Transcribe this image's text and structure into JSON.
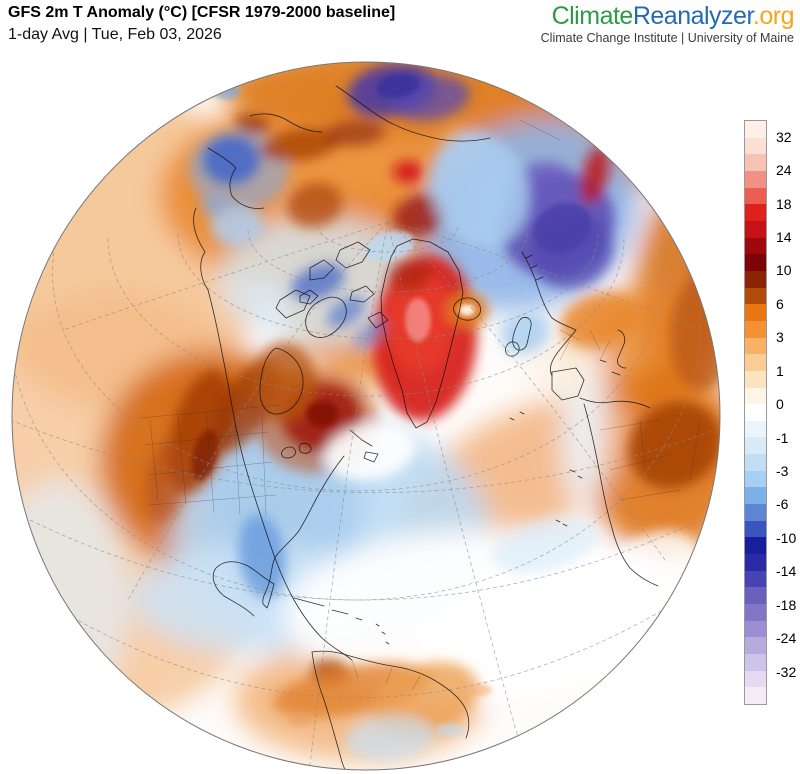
{
  "header": {
    "title": "GFS 2m T Anomaly (°C) [CFSR 1979-2000 baseline]",
    "subtitle": "1-day Avg | Tue, Feb 03, 2026"
  },
  "logo": {
    "part1": "Climate",
    "part2": "Reanalyzer",
    "part3": ".org",
    "tagline": "Climate Change Institute | University of Maine",
    "colors": {
      "part1": "#2C9A47",
      "part2": "#2569B0",
      "part3": "#F7A51B"
    }
  },
  "colorbar": {
    "units": "°C",
    "tick_labels": [
      "32",
      "24",
      "18",
      "14",
      "10",
      "6",
      "3",
      "1",
      "0",
      "-1",
      "-3",
      "-6",
      "-10",
      "-14",
      "-18",
      "-24",
      "-32"
    ],
    "segments": [
      "#FDF0E9",
      "#FAE0D5",
      "#F6C3B4",
      "#F19085",
      "#EB5F52",
      "#DE221B",
      "#C51217",
      "#9E090D",
      "#7C0408",
      "#8B2405",
      "#B14B0A",
      "#E97613",
      "#F59133",
      "#F8B265",
      "#FACD96",
      "#FCE3C1",
      "#FEF5E7",
      "#FFFFFF",
      "#EDF5FC",
      "#D9EAF9",
      "#C0DEF6",
      "#A5D0F2",
      "#7CB0E8",
      "#5E86D4",
      "#3A55BE",
      "#16209E",
      "#2B2AA6",
      "#4743B0",
      "#6A60BE",
      "#8376C6",
      "#9C8ED2",
      "#B7AADC",
      "#CEC3E8",
      "#E4DBF2",
      "#F4EDF8"
    ]
  },
  "map": {
    "projection": "orthographic globe",
    "accent_warm": "#E8862C",
    "accent_cool": "#5C50B2"
  }
}
